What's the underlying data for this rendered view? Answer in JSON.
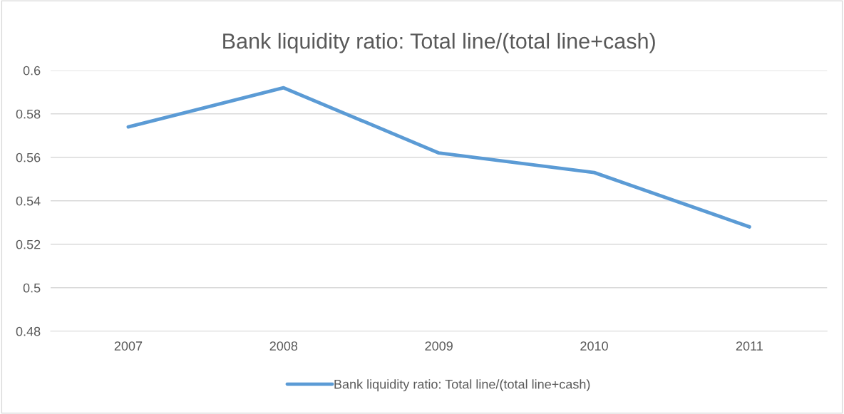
{
  "chart_data": {
    "type": "line",
    "title": "Bank liquidity ratio: Total line/(total line+cash)",
    "categories": [
      "2007",
      "2008",
      "2009",
      "2010",
      "2011"
    ],
    "series": [
      {
        "name": "Bank liquidity ratio: Total line/(total line+cash)",
        "color": "#5b9bd5",
        "values": [
          0.574,
          0.592,
          0.562,
          0.553,
          0.528
        ]
      }
    ],
    "ylim": [
      0.48,
      0.6
    ],
    "yticks": [
      0.48,
      0.5,
      0.52,
      0.54,
      0.56,
      0.58,
      0.6
    ],
    "grid": "y",
    "legend": "bottom",
    "marker": "none",
    "line_style": "solid"
  }
}
